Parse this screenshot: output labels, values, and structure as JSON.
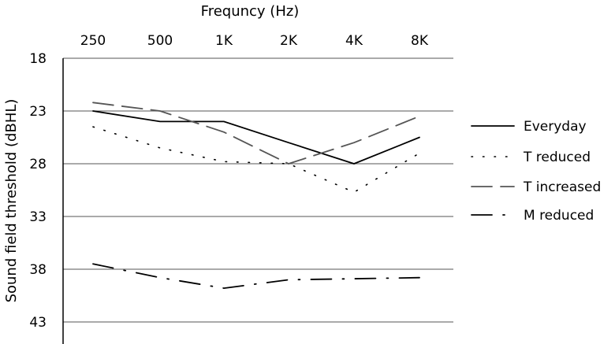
{
  "chart_data": {
    "type": "line",
    "xlabel": "Frequncy (Hz)",
    "ylabel": "Sound field threshold (dBHL)",
    "categories": [
      "250",
      "500",
      "1K",
      "2K",
      "4K",
      "8K"
    ],
    "yticks": [
      "18",
      "23",
      "28",
      "33",
      "38",
      "43"
    ],
    "ylim": [
      18,
      45
    ],
    "y_inverted": true,
    "x_axis_position": "top",
    "grid": "horizontal",
    "legend_position": "right",
    "series": [
      {
        "name": "Everyday",
        "style": "solid",
        "values": [
          23,
          24,
          24,
          26,
          28,
          25.5
        ]
      },
      {
        "name": "T reduced",
        "style": "dotted",
        "values": [
          24.5,
          26.5,
          27.8,
          28,
          30.7,
          27
        ]
      },
      {
        "name": "T increased",
        "style": "dashed",
        "values": [
          22.2,
          23,
          25,
          28,
          26,
          23.5
        ]
      },
      {
        "name": "M reduced",
        "style": "dash-dot",
        "values": [
          37.5,
          38.8,
          39.8,
          39,
          38.9,
          38.8
        ]
      }
    ]
  }
}
